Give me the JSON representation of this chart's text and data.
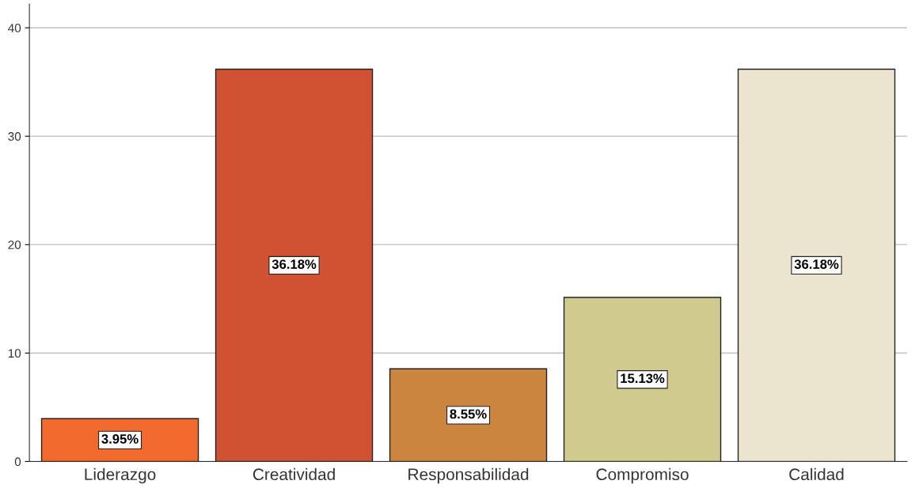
{
  "chart_data": {
    "type": "bar",
    "categories": [
      "Liderazgo",
      "Creatividad",
      "Responsabilidad",
      "Compromiso",
      "Calidad"
    ],
    "values": [
      3.95,
      36.18,
      8.55,
      15.13,
      36.18
    ],
    "colors": [
      "#f26a2e",
      "#d05232",
      "#cb853f",
      "#d1ca8e",
      "#ebe4cf"
    ],
    "value_labels": [
      "3.95%",
      "36.18%",
      "8.55%",
      "15.13%",
      "36.18%"
    ],
    "ylim": [
      0,
      42.2
    ],
    "yticks": [
      0,
      10,
      20,
      30,
      40
    ],
    "grid": "y"
  }
}
